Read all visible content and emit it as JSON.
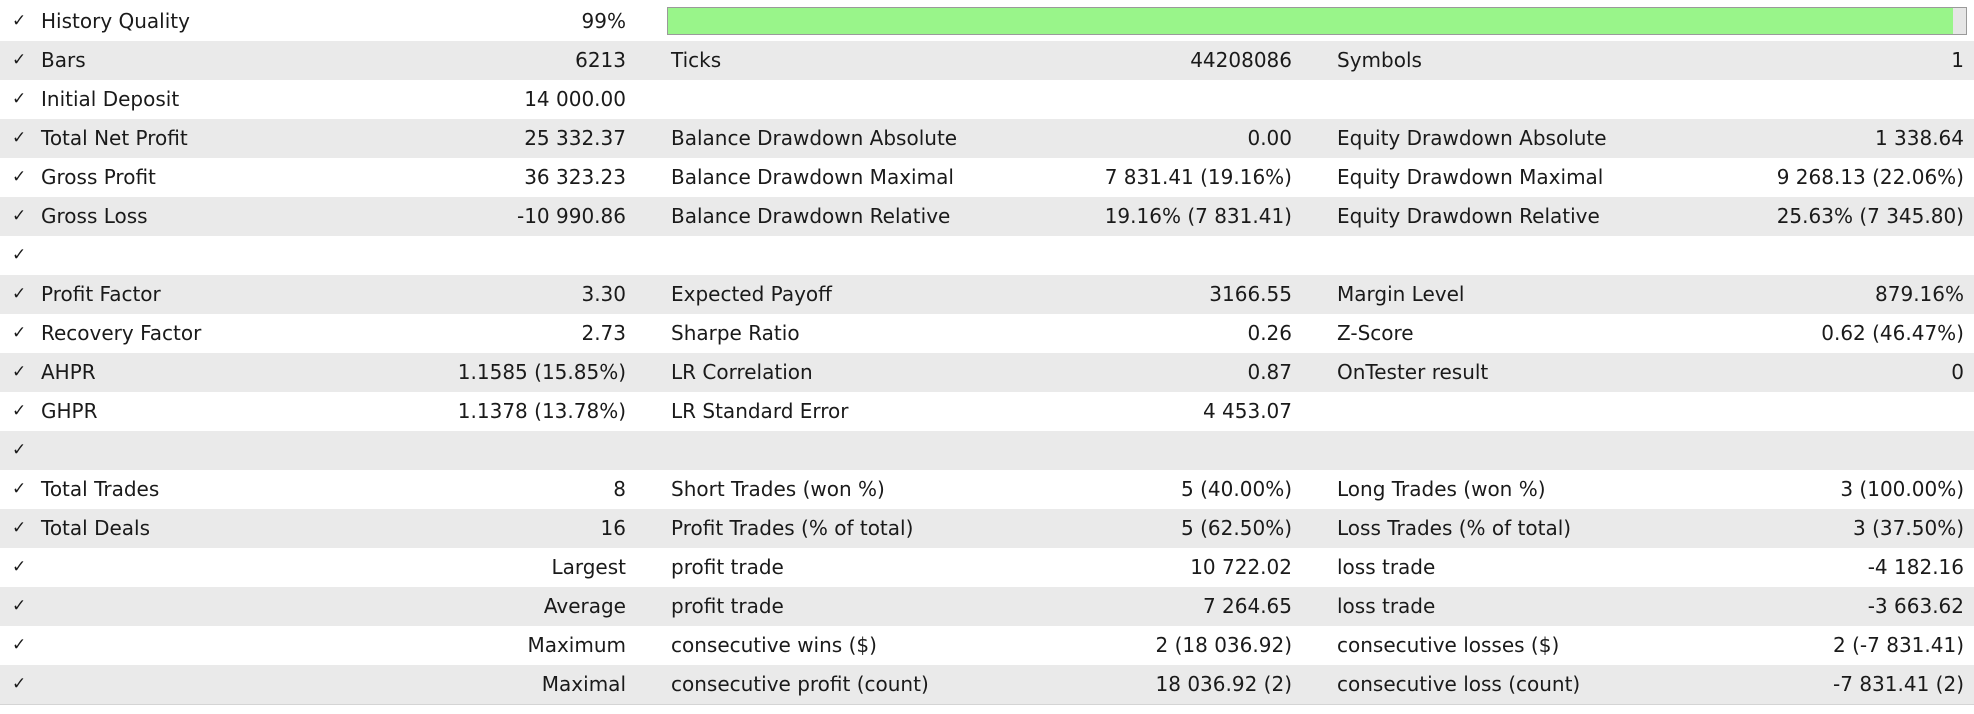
{
  "check": "✓",
  "quality": {
    "label": "History Quality",
    "value": "99%",
    "fill_fraction": 0.99,
    "bar_color": "#99f58a"
  },
  "rows": [
    {
      "c1": {
        "label": "Bars",
        "value": "6213"
      },
      "c2": {
        "label": "Ticks",
        "value": "44208086"
      },
      "c3": {
        "label": "Symbols",
        "value": "1"
      }
    },
    {
      "c1": {
        "label": "Initial Deposit",
        "value": "14 000.00"
      }
    },
    {
      "c1": {
        "label": "Total Net Profit",
        "value": "25 332.37"
      },
      "c2": {
        "label": "Balance Drawdown Absolute",
        "value": "0.00"
      },
      "c3": {
        "label": "Equity Drawdown Absolute",
        "value": "1 338.64"
      }
    },
    {
      "c1": {
        "label": "Gross Profit",
        "value": "36 323.23"
      },
      "c2": {
        "label": "Balance Drawdown Maximal",
        "value": "7 831.41 (19.16%)"
      },
      "c3": {
        "label": "Equity Drawdown Maximal",
        "value": "9 268.13 (22.06%)"
      }
    },
    {
      "c1": {
        "label": "Gross Loss",
        "value": "-10 990.86"
      },
      "c2": {
        "label": "Balance Drawdown Relative",
        "value": "19.16% (7 831.41)"
      },
      "c3": {
        "label": "Equity Drawdown Relative",
        "value": "25.63% (7 345.80)"
      }
    },
    {},
    {
      "c1": {
        "label": "Profit Factor",
        "value": "3.30"
      },
      "c2": {
        "label": "Expected Payoff",
        "value": "3166.55"
      },
      "c3": {
        "label": "Margin Level",
        "value": "879.16%"
      }
    },
    {
      "c1": {
        "label": "Recovery Factor",
        "value": "2.73"
      },
      "c2": {
        "label": "Sharpe Ratio",
        "value": "0.26"
      },
      "c3": {
        "label": "Z-Score",
        "value": "0.62 (46.47%)"
      }
    },
    {
      "c1": {
        "label": "AHPR",
        "value": "1.1585 (15.85%)"
      },
      "c2": {
        "label": "LR Correlation",
        "value": "0.87"
      },
      "c3": {
        "label": "OnTester result",
        "value": "0"
      }
    },
    {
      "c1": {
        "label": "GHPR",
        "value": "1.1378 (13.78%)"
      },
      "c2": {
        "label": "LR Standard Error",
        "value": "4 453.07"
      }
    },
    {},
    {
      "c1": {
        "label": "Total Trades",
        "value": "8"
      },
      "c2": {
        "label": "Short Trades (won %)",
        "value": "5 (40.00%)"
      },
      "c3": {
        "label": "Long Trades (won %)",
        "value": "3 (100.00%)"
      }
    },
    {
      "c1": {
        "label": "Total Deals",
        "value": "16"
      },
      "c2": {
        "label": "Profit Trades (% of total)",
        "value": "5 (62.50%)"
      },
      "c3": {
        "label": "Loss Trades (% of total)",
        "value": "3 (37.50%)"
      }
    },
    {
      "c1": {
        "rlabel": "Largest"
      },
      "c2": {
        "label": "profit trade",
        "value": "10 722.02"
      },
      "c3": {
        "label": "loss trade",
        "value": "-4 182.16"
      }
    },
    {
      "c1": {
        "rlabel": "Average"
      },
      "c2": {
        "label": "profit trade",
        "value": "7 264.65"
      },
      "c3": {
        "label": "loss trade",
        "value": "-3 663.62"
      }
    },
    {
      "c1": {
        "rlabel": "Maximum"
      },
      "c2": {
        "label": "consecutive wins ($)",
        "value": "2 (18 036.92)"
      },
      "c3": {
        "label": "consecutive losses ($)",
        "value": "2 (-7 831.41)"
      }
    },
    {
      "c1": {
        "rlabel": "Maximal"
      },
      "c2": {
        "label": "consecutive profit (count)",
        "value": "18 036.92 (2)"
      },
      "c3": {
        "label": "consecutive loss (count)",
        "value": "-7 831.41 (2)"
      }
    }
  ]
}
